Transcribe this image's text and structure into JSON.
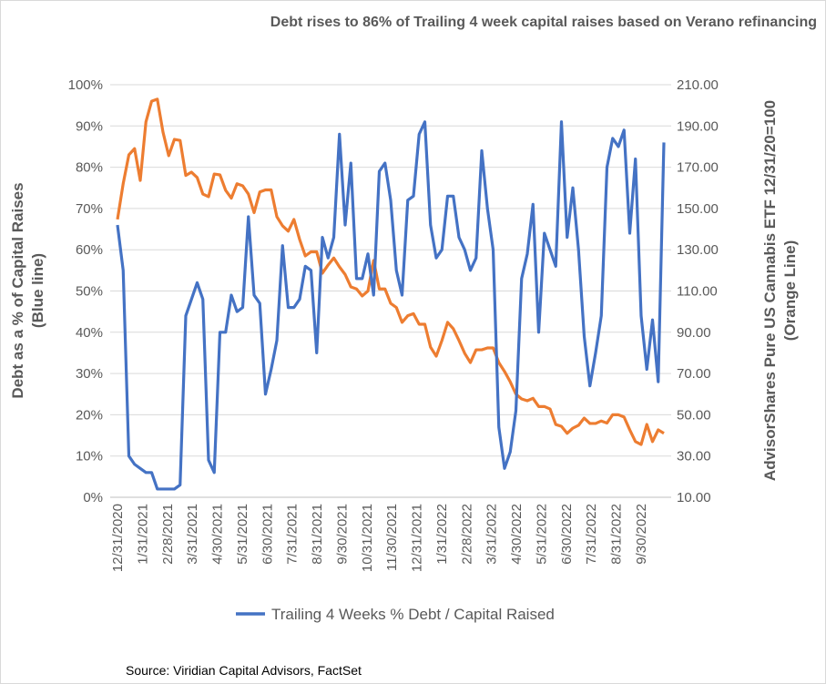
{
  "chart_data": {
    "type": "line",
    "title": "Debt rises to 86% of Trailing 4 week capital raises based on Verano refinancing",
    "ylabel_left": "Debt as a % of Capital Raises (Blue line)",
    "ylabel_left_lines": [
      "Debt as a % of Capital Raises",
      "(Blue line)"
    ],
    "ylabel_right_lines": [
      "AdvisorShares Pure US Cannabis ETF 12/31/20=100",
      "(Orange Line)"
    ],
    "ylim_left": [
      0,
      100
    ],
    "ylim_right": [
      10,
      210
    ],
    "yticks_left": [
      "0%",
      "10%",
      "20%",
      "30%",
      "40%",
      "50%",
      "60%",
      "70%",
      "80%",
      "90%",
      "100%"
    ],
    "yticks_right": [
      "10.00",
      "30.00",
      "50.00",
      "70.00",
      "90.00",
      "110.00",
      "130.00",
      "150.00",
      "170.00",
      "190.00",
      "210.00"
    ],
    "xticks": [
      "12/31/2020",
      "1/31/2021",
      "2/28/2021",
      "3/31/2021",
      "4/30/2021",
      "5/31/2021",
      "6/30/2021",
      "7/31/2021",
      "8/31/2021",
      "9/30/2021",
      "10/31/2021",
      "11/30/2021",
      "12/31/2021",
      "1/31/2022",
      "2/28/2022",
      "3/31/2022",
      "4/30/2022",
      "5/31/2022",
      "6/30/2022",
      "7/31/2022",
      "8/31/2022",
      "9/30/2022"
    ],
    "grid": true,
    "legend_position": "bottom",
    "series": [
      {
        "name": "Trailing 4 Weeks % Debt / Capital Raised",
        "axis": "left",
        "color": "#4472C4",
        "values": [
          66,
          55,
          10,
          8,
          7,
          6,
          6,
          2,
          2,
          2,
          2,
          3,
          44,
          48,
          52,
          48,
          9,
          6,
          40,
          40,
          49,
          45,
          46,
          68,
          49,
          47,
          25,
          31,
          38,
          61,
          46,
          46,
          48,
          56,
          55,
          35,
          63,
          58,
          63,
          88,
          66,
          81,
          53,
          53,
          59,
          49,
          79,
          81,
          72,
          55,
          49,
          72,
          73,
          88,
          91,
          66,
          58,
          60,
          73,
          73,
          63,
          60,
          55,
          58,
          84,
          70,
          60,
          17,
          7,
          11,
          21,
          53,
          59,
          71,
          40,
          64,
          60,
          56,
          91,
          63,
          75,
          60,
          39,
          27,
          35,
          44,
          80,
          87,
          85,
          89,
          64,
          82,
          44,
          31,
          43,
          28,
          86
        ]
      },
      {
        "axis": "right",
        "color": "#ED7D31",
        "values": [
          144.7,
          162,
          176,
          179,
          163.6,
          192,
          202,
          203,
          187,
          175.6,
          183.5,
          183,
          166,
          167.6,
          165,
          157,
          155.7,
          166.7,
          166.3,
          158.8,
          155,
          162,
          161,
          157,
          148,
          158,
          159,
          159,
          146,
          141.6,
          139,
          144.7,
          135,
          127,
          129,
          129,
          118.6,
          122.6,
          126,
          121.7,
          118,
          112,
          111,
          107.6,
          110,
          124.8,
          111,
          111,
          104,
          102,
          94.8,
          98,
          99,
          93.9,
          93.9,
          82.8,
          78.4,
          86,
          94.8,
          91.7,
          86,
          79.8,
          75.3,
          81.5,
          81.5,
          82.4,
          82.4,
          75.3,
          71,
          66,
          60,
          57.7,
          56.8,
          58,
          54,
          54,
          52.8,
          45.3,
          44.4,
          41,
          43.5,
          44.9,
          48.4,
          45.8,
          45.8,
          47,
          46,
          50,
          50,
          48.9,
          42.7,
          37,
          35.6,
          45.3,
          37,
          42.7,
          41
        ]
      }
    ],
    "source": "Source: Viridian Capital Advisors, FactSet"
  }
}
